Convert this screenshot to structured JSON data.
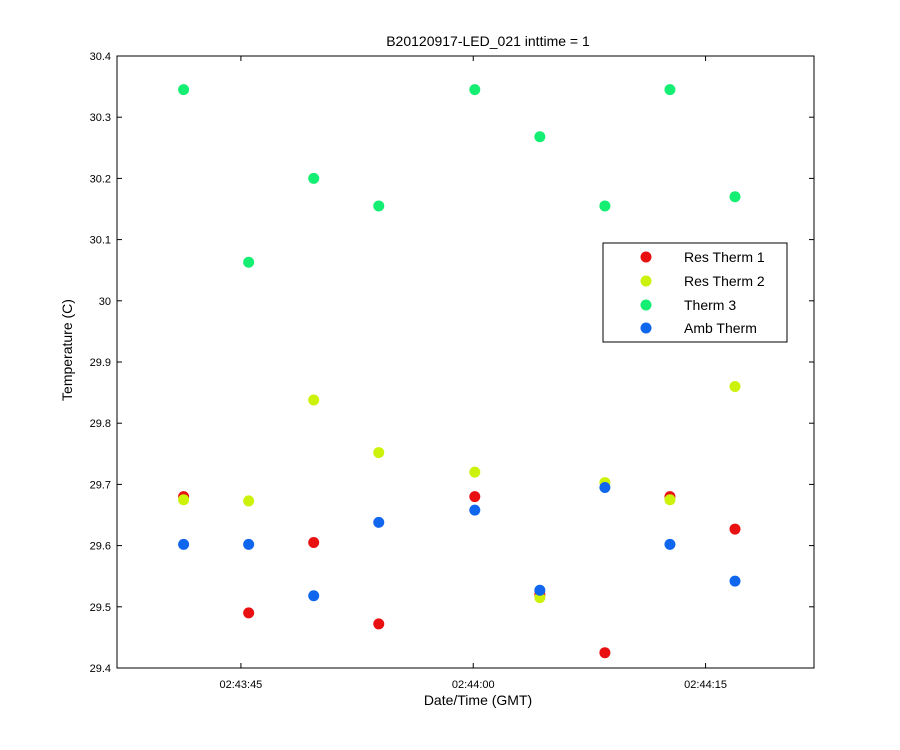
{
  "chart_data": {
    "type": "scatter",
    "title": "B20120917-LED_021 inttime = 1",
    "xlabel": "Date/Time (GMT)",
    "ylabel": "Temperature (C)",
    "xlim_seconds": [
      37,
      82
    ],
    "ylim": [
      29.4,
      30.4
    ],
    "x_ticks": [
      {
        "value": 45,
        "label": "02:43:45"
      },
      {
        "value": 60,
        "label": "02:44:00"
      },
      {
        "value": 75,
        "label": "02:44:15"
      }
    ],
    "y_ticks": [
      {
        "value": 29.4,
        "label": "29.4"
      },
      {
        "value": 29.5,
        "label": "29.5"
      },
      {
        "value": 29.6,
        "label": "29.6"
      },
      {
        "value": 29.7,
        "label": "29.7"
      },
      {
        "value": 29.8,
        "label": "29.8"
      },
      {
        "value": 29.9,
        "label": "29.9"
      },
      {
        "value": 30.0,
        "label": "30"
      },
      {
        "value": 30.1,
        "label": "30.1"
      },
      {
        "value": 30.2,
        "label": "30.2"
      },
      {
        "value": 30.3,
        "label": "30.3"
      },
      {
        "value": 30.4,
        "label": "30.4"
      }
    ],
    "x": [
      41.3,
      45.5,
      49.7,
      53.9,
      60.1,
      64.3,
      68.5,
      72.7,
      76.9
    ],
    "series": [
      {
        "name": "Res Therm 1",
        "color": "#e81010",
        "values": [
          29.68,
          29.49,
          29.605,
          29.472,
          29.68,
          29.52,
          29.425,
          29.68,
          29.627
        ]
      },
      {
        "name": "Res Therm 2",
        "color": "#ccf20a",
        "values": [
          29.675,
          29.673,
          29.838,
          29.752,
          29.72,
          29.515,
          29.703,
          29.675,
          29.86
        ]
      },
      {
        "name": "Therm 3",
        "color": "#14ee72",
        "values": [
          30.345,
          30.063,
          30.2,
          30.155,
          30.345,
          30.268,
          30.155,
          30.345,
          30.17
        ]
      },
      {
        "name": "Amb Therm",
        "color": "#1166ee",
        "values": [
          29.602,
          29.602,
          29.518,
          29.638,
          29.658,
          29.527,
          29.695,
          29.602,
          29.542
        ]
      }
    ],
    "legend_position": "upper-right, inside",
    "grid": false
  }
}
